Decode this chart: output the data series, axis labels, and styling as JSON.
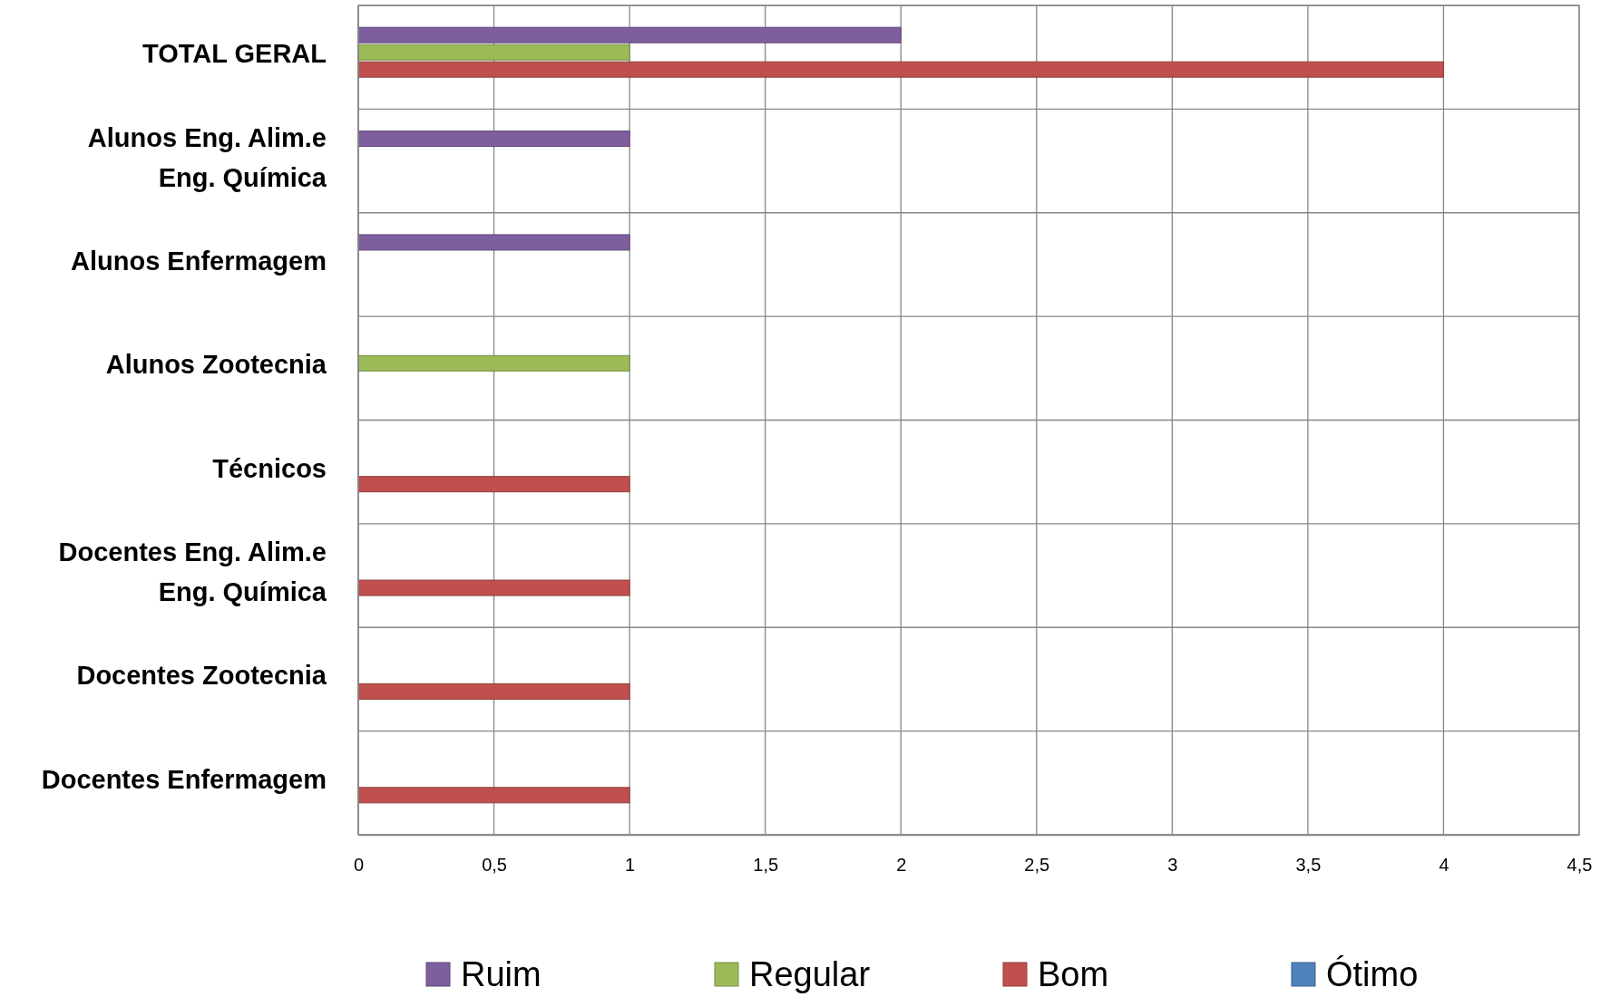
{
  "chart_data": {
    "type": "bar",
    "orientation": "horizontal",
    "categories": [
      "TOTAL GERAL",
      "Alunos Eng. Alim.e Eng. Química",
      "Alunos Enfermagem",
      "Alunos Zootecnia",
      "Técnicos",
      "Docentes Eng. Alim.e Eng. Química",
      "Docentes Zootecnia",
      "Docentes Enfermagem"
    ],
    "series": [
      {
        "name": "Ruim",
        "color": "#7d5fa0",
        "values": [
          2,
          1,
          1,
          0,
          0,
          0,
          0,
          0
        ]
      },
      {
        "name": "Regular",
        "color": "#9bbb59",
        "values": [
          1,
          0,
          0,
          1,
          0,
          0,
          0,
          0
        ]
      },
      {
        "name": "Bom",
        "color": "#c0504d",
        "values": [
          4,
          0,
          0,
          0,
          1,
          1,
          1,
          1
        ]
      },
      {
        "name": "Ótimo",
        "color": "#4f81bd",
        "values": [
          0,
          0,
          0,
          0,
          0,
          0,
          0,
          0
        ]
      }
    ],
    "xlim": [
      0,
      4.5
    ],
    "xticks": [
      0,
      {
        "value": 0.5,
        "label": "0,5"
      },
      1,
      {
        "value": 1.5,
        "label": "1,5"
      },
      2,
      {
        "value": 2.5,
        "label": "2,5"
      },
      3,
      {
        "value": 3.5,
        "label": "3,5"
      },
      4,
      {
        "value": 4.5,
        "label": "4,5"
      }
    ],
    "grid": true,
    "legend": "bottom"
  }
}
